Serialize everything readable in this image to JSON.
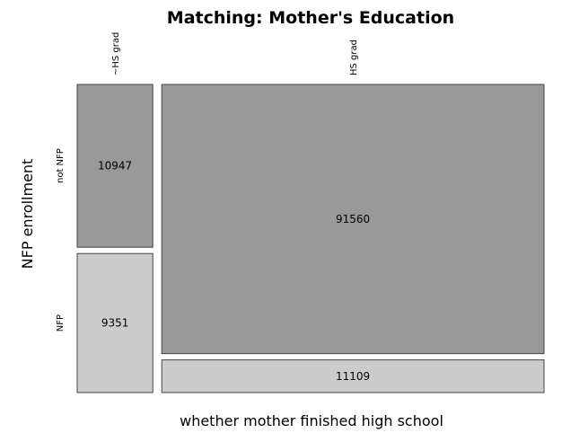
{
  "chart_data": {
    "type": "mosaic",
    "title": "Matching: Mother's Education",
    "xlabel": "whether mother finished high school",
    "ylabel": "NFP enrollment",
    "x_categories": [
      "~HS grad",
      "HS grad"
    ],
    "y_categories": [
      "not NFP",
      "NFP"
    ],
    "counts": [
      [
        10947,
        9351
      ],
      [
        91560,
        11109
      ]
    ],
    "colors": {
      "not NFP": "#999999",
      "NFP": "#cccccc"
    },
    "legend": "none",
    "grid": false
  }
}
